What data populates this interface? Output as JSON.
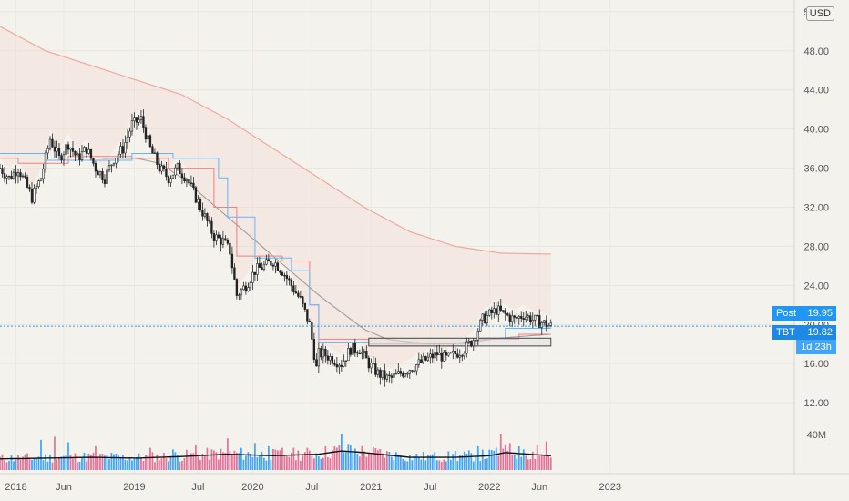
{
  "currency": "USD",
  "price_labels": {
    "post_label": "Post",
    "post_value": "19.95",
    "symbol_label": "TBT",
    "last_value": "19.82",
    "countdown": "1d 23h"
  },
  "colors": {
    "up": "#ffffff",
    "down": "#222222",
    "ma_long": "#f0a8a0",
    "ma_mid": "#9e9e9e",
    "step_red": "#f08080",
    "step_blue": "#64b5f6",
    "vol_up": "#42a5f5",
    "vol_down": "#e57399",
    "vol_ma": "#111111",
    "price_line": "#2196f3"
  },
  "chart_data": {
    "type": "candlestick",
    "y_axis": {
      "range": [
        9.4,
        53.2
      ],
      "ticks": [
        "52.00",
        "48.00",
        "44.00",
        "40.00",
        "36.00",
        "32.00",
        "28.00",
        "24.00",
        "20.00",
        "16.00",
        "12.00"
      ],
      "volume_tick": "40M"
    },
    "x_axis": {
      "range_weeks": [
        0,
        242.5
      ],
      "ticks": [
        {
          "label": "2018",
          "week": 7
        },
        {
          "label": "Jun",
          "week": 28
        },
        {
          "label": "2019",
          "week": 59
        },
        {
          "label": "Jul",
          "week": 87
        },
        {
          "label": "2020",
          "week": 111
        },
        {
          "label": "Jul",
          "week": 137
        },
        {
          "label": "2021",
          "week": 163
        },
        {
          "label": "Jul",
          "week": 189
        },
        {
          "label": "2022",
          "week": 215
        },
        {
          "label": "Jun",
          "week": 237
        },
        {
          "label": "2023",
          "week": 268
        }
      ]
    },
    "price_anchors": [
      [
        0,
        36
      ],
      [
        4,
        35
      ],
      [
        8,
        36
      ],
      [
        12,
        34
      ],
      [
        14,
        33
      ],
      [
        18,
        35
      ],
      [
        22,
        39
      ],
      [
        26,
        37
      ],
      [
        30,
        38.5
      ],
      [
        34,
        37
      ],
      [
        38,
        38
      ],
      [
        42,
        36
      ],
      [
        46,
        35
      ],
      [
        50,
        37
      ],
      [
        54,
        38
      ],
      [
        58,
        40.5
      ],
      [
        62,
        41
      ],
      [
        66,
        38
      ],
      [
        70,
        36
      ],
      [
        74,
        35
      ],
      [
        78,
        36
      ],
      [
        82,
        35
      ],
      [
        86,
        33
      ],
      [
        90,
        31
      ],
      [
        94,
        29
      ],
      [
        98,
        28.5
      ],
      [
        101,
        27.5
      ],
      [
        104,
        23
      ],
      [
        108,
        24
      ],
      [
        112,
        25.5
      ],
      [
        116,
        26
      ],
      [
        120,
        26.5
      ],
      [
        124,
        25.5
      ],
      [
        128,
        24
      ],
      [
        132,
        22.5
      ],
      [
        136,
        20
      ],
      [
        138,
        17
      ],
      [
        139,
        15.5
      ],
      [
        140,
        17
      ],
      [
        142,
        17
      ],
      [
        146,
        16.5
      ],
      [
        150,
        16
      ],
      [
        154,
        17.5
      ],
      [
        158,
        17.5
      ],
      [
        162,
        16
      ],
      [
        166,
        15
      ],
      [
        170,
        14.5
      ],
      [
        172,
        14.5
      ],
      [
        176,
        15
      ],
      [
        180,
        15.5
      ],
      [
        184,
        16
      ],
      [
        188,
        16.5
      ],
      [
        192,
        17
      ],
      [
        196,
        16.5
      ],
      [
        200,
        17
      ],
      [
        204,
        17.5
      ],
      [
        208,
        18.5
      ],
      [
        212,
        20.5
      ],
      [
        215,
        21
      ],
      [
        218,
        21.5
      ],
      [
        222,
        21
      ],
      [
        226,
        20.5
      ],
      [
        230,
        21
      ],
      [
        234,
        20.5
      ],
      [
        238,
        20.2
      ],
      [
        242,
        19.82
      ]
    ],
    "moving_average_long_anchors": [
      [
        0,
        50.5
      ],
      [
        20,
        48
      ],
      [
        40,
        46.5
      ],
      [
        60,
        45
      ],
      [
        80,
        43.5
      ],
      [
        100,
        41
      ],
      [
        120,
        38
      ],
      [
        140,
        35
      ],
      [
        160,
        32
      ],
      [
        180,
        29.5
      ],
      [
        200,
        28
      ],
      [
        220,
        27.3
      ],
      [
        242,
        27.2
      ]
    ],
    "moving_average_mid_anchors": [
      [
        45,
        37
      ],
      [
        60,
        37
      ],
      [
        70,
        36.5
      ],
      [
        80,
        35
      ],
      [
        100,
        31
      ],
      [
        120,
        27
      ],
      [
        140,
        23
      ],
      [
        160,
        19.5
      ],
      [
        170,
        18.5
      ],
      [
        180,
        18.2
      ],
      [
        190,
        18.0
      ],
      [
        200,
        18.1
      ],
      [
        210,
        18.3
      ],
      [
        220,
        18.6
      ],
      [
        230,
        18.8
      ],
      [
        242,
        19.0
      ]
    ],
    "step_line_red": [
      [
        0,
        37
      ],
      [
        8,
        37
      ],
      [
        8,
        36.5
      ],
      [
        30,
        36.5
      ],
      [
        30,
        37.2
      ],
      [
        58,
        37.2
      ],
      [
        58,
        37
      ],
      [
        74,
        37
      ],
      [
        74,
        36
      ],
      [
        94,
        36
      ],
      [
        94,
        32
      ],
      [
        104,
        32
      ],
      [
        104,
        27
      ],
      [
        124,
        27
      ],
      [
        124,
        26.5
      ],
      [
        136,
        26.5
      ],
      [
        136,
        22
      ],
      [
        140,
        22
      ],
      [
        140,
        18.5
      ],
      [
        162,
        18.5
      ],
      [
        162,
        18
      ],
      [
        210,
        18
      ],
      [
        210,
        18.5
      ],
      [
        228,
        18.5
      ],
      [
        228,
        19.0
      ],
      [
        242,
        19.0
      ]
    ],
    "step_line_blue": [
      [
        0,
        37.5
      ],
      [
        20,
        37.5
      ],
      [
        20,
        36.8
      ],
      [
        58,
        36.8
      ],
      [
        58,
        37.5
      ],
      [
        76,
        37.5
      ],
      [
        76,
        37
      ],
      [
        96,
        37
      ],
      [
        96,
        35
      ],
      [
        100,
        35
      ],
      [
        100,
        31
      ],
      [
        112,
        31
      ],
      [
        112,
        26.8
      ],
      [
        128,
        26.8
      ],
      [
        128,
        25.5
      ],
      [
        136,
        25.5
      ],
      [
        136,
        22
      ],
      [
        140,
        22
      ],
      [
        140,
        18.2
      ],
      [
        162,
        18.2
      ],
      [
        162,
        17.8
      ],
      [
        210,
        17.8
      ],
      [
        210,
        18.6
      ],
      [
        222,
        18.6
      ],
      [
        222,
        19.6
      ],
      [
        242,
        19.6
      ]
    ],
    "range_box": {
      "x1": 162,
      "x2": 242,
      "y_low": 17.8,
      "y_high": 18.6
    },
    "volume_max_millions": 62,
    "volume_spikes": [
      [
        18,
        38
      ],
      [
        24,
        42
      ],
      [
        30,
        35
      ],
      [
        42,
        30
      ],
      [
        66,
        28
      ],
      [
        76,
        26
      ],
      [
        86,
        32
      ],
      [
        100,
        40
      ],
      [
        112,
        34
      ],
      [
        118,
        30
      ],
      [
        124,
        28
      ],
      [
        128,
        22
      ],
      [
        150,
        46
      ],
      [
        154,
        32
      ],
      [
        162,
        22
      ],
      [
        176,
        18
      ],
      [
        190,
        20
      ],
      [
        200,
        24
      ],
      [
        210,
        30
      ],
      [
        218,
        28
      ],
      [
        220,
        46
      ],
      [
        224,
        34
      ],
      [
        230,
        26
      ],
      [
        236,
        32
      ],
      [
        240,
        36
      ]
    ],
    "volume_ma_anchors": [
      [
        0,
        14
      ],
      [
        40,
        16
      ],
      [
        60,
        15
      ],
      [
        80,
        17
      ],
      [
        100,
        20
      ],
      [
        120,
        18
      ],
      [
        140,
        20
      ],
      [
        150,
        24
      ],
      [
        160,
        22
      ],
      [
        180,
        16
      ],
      [
        200,
        16
      ],
      [
        215,
        18
      ],
      [
        222,
        22
      ],
      [
        232,
        20
      ],
      [
        242,
        18
      ]
    ]
  }
}
